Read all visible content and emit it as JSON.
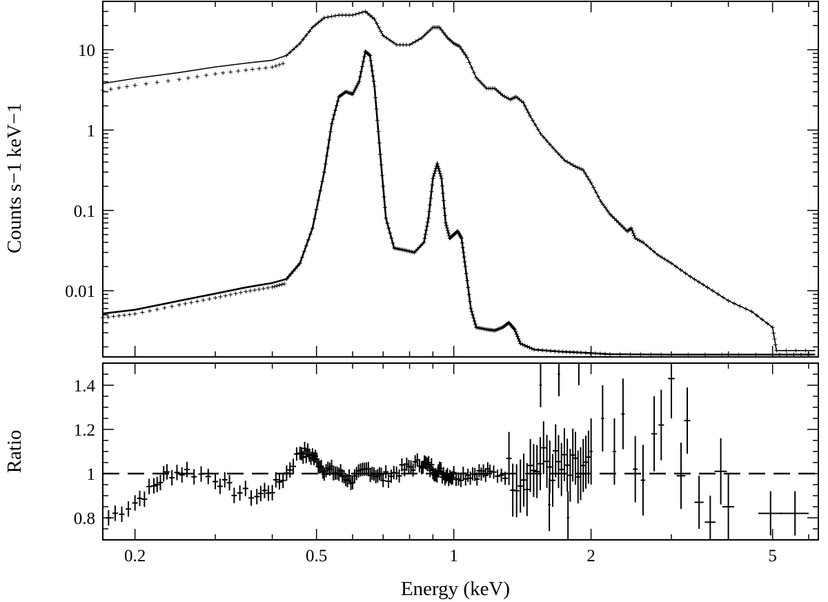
{
  "chart_data": [
    {
      "type": "line",
      "ylabel": "Counts s−1 keV−1",
      "x_scale": "log",
      "y_scale": "log",
      "xlim": [
        0.17,
        6.3
      ],
      "ylim": [
        0.0015,
        40
      ],
      "y_ticks": [
        {
          "value": 10,
          "label": "10"
        },
        {
          "value": 1,
          "label": "1"
        },
        {
          "value": 0.1,
          "label": "0.1"
        },
        {
          "value": 0.01,
          "label": "0.01"
        }
      ],
      "series": [
        {
          "points": [
            [
              0.17,
              3.8
            ],
            [
              0.2,
              4.4
            ],
            [
              0.25,
              5.2
            ],
            [
              0.3,
              6.1
            ],
            [
              0.35,
              6.8
            ],
            [
              0.4,
              7.4
            ],
            [
              0.43,
              8.5
            ],
            [
              0.46,
              12
            ],
            [
              0.49,
              19
            ],
            [
              0.52,
              25
            ],
            [
              0.56,
              27
            ],
            [
              0.6,
              27
            ],
            [
              0.64,
              30
            ],
            [
              0.67,
              24
            ],
            [
              0.7,
              15
            ],
            [
              0.75,
              11.5
            ],
            [
              0.8,
              11.5
            ],
            [
              0.85,
              14
            ],
            [
              0.9,
              19
            ],
            [
              0.93,
              19
            ],
            [
              0.97,
              14
            ],
            [
              1.0,
              12
            ],
            [
              1.03,
              11
            ],
            [
              1.07,
              8
            ],
            [
              1.12,
              4.5
            ],
            [
              1.18,
              3.3
            ],
            [
              1.23,
              3.3
            ],
            [
              1.28,
              2.7
            ],
            [
              1.33,
              2.4
            ],
            [
              1.37,
              2.6
            ],
            [
              1.42,
              2.2
            ],
            [
              1.47,
              1.5
            ],
            [
              1.55,
              0.9
            ],
            [
              1.65,
              0.6
            ],
            [
              1.75,
              0.42
            ],
            [
              1.85,
              0.35
            ],
            [
              1.92,
              0.32
            ],
            [
              2.0,
              0.22
            ],
            [
              2.1,
              0.13
            ],
            [
              2.2,
              0.09
            ],
            [
              2.3,
              0.07
            ],
            [
              2.4,
              0.055
            ],
            [
              2.45,
              0.06
            ],
            [
              2.5,
              0.045
            ],
            [
              2.6,
              0.04
            ],
            [
              2.8,
              0.028
            ],
            [
              3.0,
              0.022
            ],
            [
              3.3,
              0.015
            ],
            [
              3.6,
              0.011
            ],
            [
              4.0,
              0.0075
            ],
            [
              4.5,
              0.0055
            ],
            [
              5.0,
              0.0035
            ],
            [
              5.1,
              0.0018
            ],
            [
              6.2,
              0.0018
            ]
          ]
        },
        {
          "points": [
            [
              0.17,
              0.0052
            ],
            [
              0.2,
              0.0058
            ],
            [
              0.25,
              0.0075
            ],
            [
              0.3,
              0.0092
            ],
            [
              0.35,
              0.011
            ],
            [
              0.4,
              0.0125
            ],
            [
              0.43,
              0.014
            ],
            [
              0.46,
              0.022
            ],
            [
              0.49,
              0.06
            ],
            [
              0.52,
              0.3
            ],
            [
              0.54,
              1.2
            ],
            [
              0.56,
              2.6
            ],
            [
              0.58,
              3.0
            ],
            [
              0.6,
              2.8
            ],
            [
              0.62,
              4.0
            ],
            [
              0.64,
              9.5
            ],
            [
              0.655,
              8.5
            ],
            [
              0.67,
              3.5
            ],
            [
              0.69,
              0.5
            ],
            [
              0.71,
              0.08
            ],
            [
              0.74,
              0.034
            ],
            [
              0.78,
              0.032
            ],
            [
              0.82,
              0.03
            ],
            [
              0.86,
              0.04
            ],
            [
              0.88,
              0.08
            ],
            [
              0.9,
              0.25
            ],
            [
              0.92,
              0.38
            ],
            [
              0.94,
              0.25
            ],
            [
              0.96,
              0.07
            ],
            [
              0.98,
              0.045
            ],
            [
              1.0,
              0.05
            ],
            [
              1.02,
              0.055
            ],
            [
              1.04,
              0.045
            ],
            [
              1.06,
              0.02
            ],
            [
              1.09,
              0.006
            ],
            [
              1.12,
              0.0035
            ],
            [
              1.18,
              0.0033
            ],
            [
              1.23,
              0.0032
            ],
            [
              1.28,
              0.0035
            ],
            [
              1.32,
              0.004
            ],
            [
              1.36,
              0.0033
            ],
            [
              1.4,
              0.0022
            ],
            [
              1.5,
              0.00185
            ],
            [
              1.7,
              0.00175
            ],
            [
              1.9,
              0.0017
            ],
            [
              2.2,
              0.00162
            ],
            [
              3.0,
              0.0016
            ],
            [
              5.0,
              0.0016
            ],
            [
              6.2,
              0.0016
            ]
          ]
        }
      ]
    },
    {
      "type": "scatter",
      "xlabel": "Energy (keV)",
      "ylabel": "Ratio",
      "x_scale": "log",
      "xlim": [
        0.17,
        6.3
      ],
      "ylim": [
        0.7,
        1.5
      ],
      "x_ticks": [
        {
          "value": 0.2,
          "label": "0.2"
        },
        {
          "value": 0.5,
          "label": "0.5"
        },
        {
          "value": 1,
          "label": "1"
        },
        {
          "value": 2,
          "label": "2"
        },
        {
          "value": 5,
          "label": "5"
        }
      ],
      "y_ticks": [
        {
          "value": 1.4,
          "label": "1.4"
        },
        {
          "value": 1.2,
          "label": "1.2"
        },
        {
          "value": 1,
          "label": "1"
        },
        {
          "value": 0.8,
          "label": "0.8"
        }
      ],
      "reference_line": 1,
      "ratio_trend": [
        [
          0.175,
          0.8
        ],
        [
          0.2,
          0.87
        ],
        [
          0.22,
          0.94
        ],
        [
          0.235,
          1.0
        ],
        [
          0.26,
          1.01
        ],
        [
          0.3,
          0.98
        ],
        [
          0.33,
          0.92
        ],
        [
          0.37,
          0.9
        ],
        [
          0.4,
          0.93
        ],
        [
          0.43,
          1.0
        ],
        [
          0.46,
          1.1
        ],
        [
          0.49,
          1.08
        ],
        [
          0.52,
          1.02
        ],
        [
          0.56,
          1.0
        ],
        [
          0.6,
          0.97
        ],
        [
          0.65,
          1.02
        ],
        [
          0.7,
          0.98
        ],
        [
          0.78,
          1.02
        ],
        [
          0.85,
          1.05
        ],
        [
          0.9,
          1.02
        ],
        [
          0.95,
          1.0
        ],
        [
          1.0,
          0.99
        ],
        [
          1.1,
          1.0
        ],
        [
          1.2,
          1.0
        ],
        [
          1.4,
          1.0
        ],
        [
          1.6,
          1.05
        ],
        [
          1.8,
          1.0
        ],
        [
          2.0,
          1.0
        ]
      ],
      "ratio_points": [
        {
          "x": 1.55,
          "y": 1.4,
          "xerr": 0.01,
          "yerr": 0.1
        },
        {
          "x": 1.62,
          "y": 0.86,
          "xerr": 0.01,
          "yerr": 0.12
        },
        {
          "x": 1.7,
          "y": 1.45,
          "xerr": 0.01,
          "yerr": 0.1
        },
        {
          "x": 1.78,
          "y": 0.8,
          "xerr": 0.01,
          "yerr": 0.12
        },
        {
          "x": 1.88,
          "y": 1.5,
          "xerr": 0.01,
          "yerr": 0.1
        },
        {
          "x": 2.0,
          "y": 1.1,
          "xerr": 0.015,
          "yerr": 0.15
        },
        {
          "x": 2.12,
          "y": 1.25,
          "xerr": 0.015,
          "yerr": 0.15
        },
        {
          "x": 2.25,
          "y": 1.1,
          "xerr": 0.02,
          "yerr": 0.15
        },
        {
          "x": 2.35,
          "y": 1.27,
          "xerr": 0.02,
          "yerr": 0.16
        },
        {
          "x": 2.5,
          "y": 1.02,
          "xerr": 0.03,
          "yerr": 0.15
        },
        {
          "x": 2.6,
          "y": 0.97,
          "xerr": 0.03,
          "yerr": 0.16
        },
        {
          "x": 2.75,
          "y": 1.18,
          "xerr": 0.04,
          "yerr": 0.17
        },
        {
          "x": 2.85,
          "y": 1.22,
          "xerr": 0.04,
          "yerr": 0.16
        },
        {
          "x": 3.0,
          "y": 1.43,
          "xerr": 0.05,
          "yerr": 0.18
        },
        {
          "x": 3.15,
          "y": 0.99,
          "xerr": 0.07,
          "yerr": 0.15
        },
        {
          "x": 3.25,
          "y": 1.24,
          "xerr": 0.05,
          "yerr": 0.15
        },
        {
          "x": 3.45,
          "y": 0.87,
          "xerr": 0.08,
          "yerr": 0.12
        },
        {
          "x": 3.65,
          "y": 0.78,
          "xerr": 0.1,
          "yerr": 0.12
        },
        {
          "x": 3.85,
          "y": 1.01,
          "xerr": 0.12,
          "yerr": 0.15
        },
        {
          "x": 4.0,
          "y": 0.85,
          "xerr": 0.12,
          "yerr": 0.15
        },
        {
          "x": 4.95,
          "y": 0.82,
          "xerr": 0.3,
          "yerr": 0.1
        },
        {
          "x": 5.6,
          "y": 0.82,
          "xerr": 0.4,
          "yerr": 0.1
        }
      ]
    }
  ]
}
